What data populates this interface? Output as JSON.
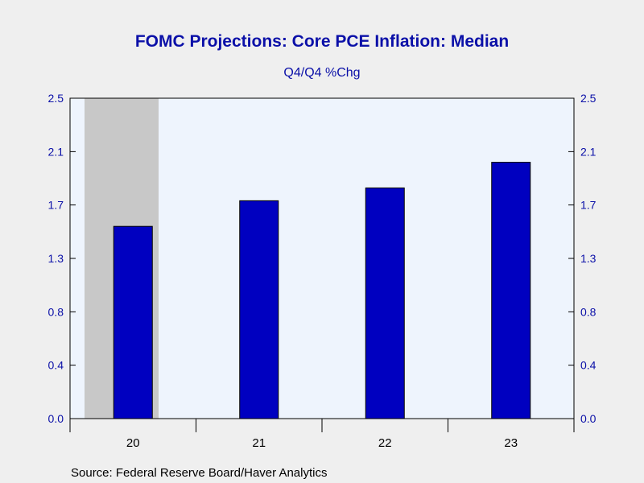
{
  "chart_data": {
    "type": "bar",
    "title": "FOMC Projections: Core PCE Inflation: Median",
    "subtitle": "Q4/Q4 %Chg",
    "categories": [
      "20",
      "21",
      "22",
      "23"
    ],
    "values": [
      1.5,
      1.7,
      1.8,
      2.0
    ],
    "ylim": [
      0.0,
      2.5
    ],
    "yticks": [
      "0.0",
      "0.4",
      "0.8",
      "1.3",
      "1.7",
      "2.1",
      "2.5"
    ],
    "ytick_values": [
      0.0,
      0.417,
      0.833,
      1.25,
      1.667,
      2.083,
      2.5
    ],
    "shaded_period": "20",
    "grid": false,
    "axes": "left and right",
    "colors": {
      "bar": "#0000c0",
      "plot_background": "#eef4fd",
      "shading": "#c8c8c8",
      "text": "#0b10a8"
    }
  },
  "source": "Source:  Federal Reserve Board/Haver Analytics"
}
